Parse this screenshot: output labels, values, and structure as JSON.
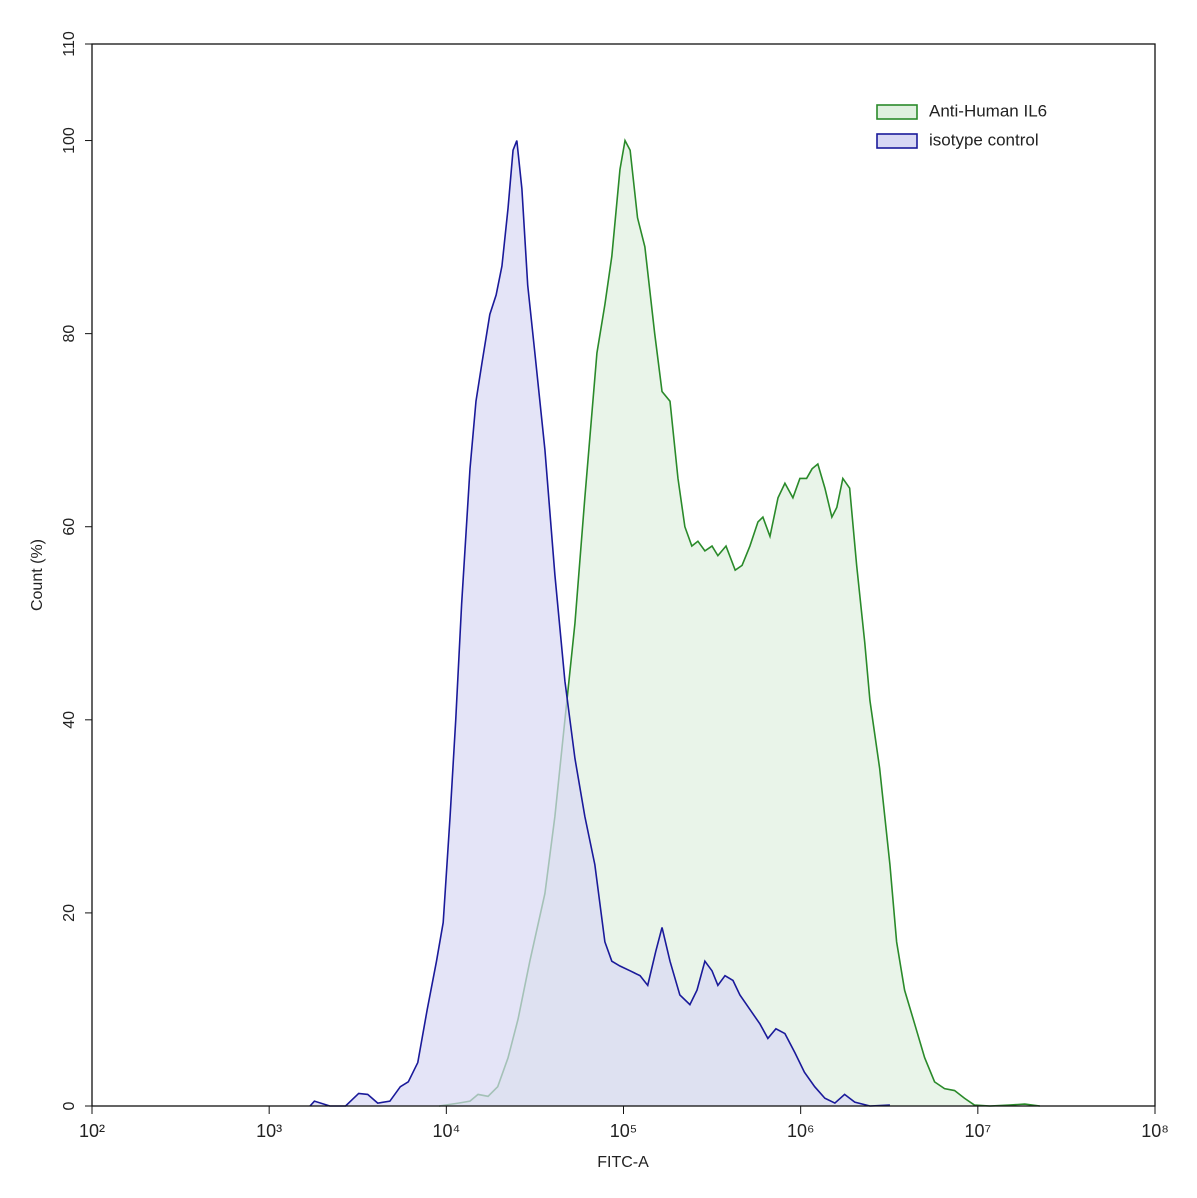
{
  "chart_data": {
    "type": "area",
    "xlabel": "FITC-A",
    "ylabel": "Count  (%)",
    "xscale": "log",
    "xlim": [
      100,
      100000000
    ],
    "xticks": [
      {
        "value": 100,
        "label": "10²"
      },
      {
        "value": 1000,
        "label": "10³"
      },
      {
        "value": 10000,
        "label": "10⁴"
      },
      {
        "value": 100000,
        "label": "10⁵"
      },
      {
        "value": 1000000,
        "label": "10⁶"
      },
      {
        "value": 10000000,
        "label": "10⁷"
      },
      {
        "value": 100000000,
        "label": "10⁸"
      }
    ],
    "ylim": [
      0,
      110
    ],
    "yticks": [
      0,
      20,
      40,
      60,
      80,
      100,
      110
    ],
    "legend": "upper right",
    "series": [
      {
        "name": "Anti-Human IL6",
        "color": "#2a8a2a",
        "fill": "#dff0df",
        "x": [
          9100,
          11700,
          13600,
          15100,
          17200,
          19500,
          22300,
          25400,
          29600,
          36000,
          41000,
          46700,
          53200,
          60500,
          70800,
          78500,
          85900,
          95500,
          102000,
          109000,
          120000,
          132000,
          150000,
          165000,
          183000,
          203000,
          222000,
          243000,
          263000,
          288000,
          316000,
          341000,
          379000,
          427000,
          467000,
          517000,
          574000,
          612000,
          671000,
          745000,
          815000,
          904000,
          990000,
          1080000,
          1160000,
          1250000,
          1370000,
          1500000,
          1600000,
          1730000,
          1890000,
          2070000,
          2300000,
          2460000,
          2790000,
          3190000,
          3480000,
          3860000,
          4400000,
          5010000,
          5700000,
          6490000,
          7390000,
          8410000,
          9570000,
          11700000,
          15100000,
          18400000,
          22400000
        ],
        "values": [
          0,
          0.3,
          0.5,
          1.2,
          1,
          2,
          5,
          9,
          15,
          22,
          30,
          40,
          50,
          63,
          78,
          83,
          88,
          97,
          100,
          99,
          92,
          89,
          80,
          74,
          73,
          65,
          60,
          58,
          58.5,
          57.5,
          58,
          57,
          58,
          55.5,
          56,
          58,
          60.5,
          61,
          59,
          63,
          64.5,
          63,
          65,
          65,
          66,
          66.5,
          64,
          61,
          62,
          65,
          64,
          56,
          48,
          42,
          35,
          25,
          17,
          12,
          8.5,
          5,
          2.5,
          1.8,
          1.6,
          0.8,
          0.1,
          0,
          0.1,
          0.2,
          0
        ]
      },
      {
        "name": "isotype control",
        "color": "#1a1a9a",
        "fill": "#d8d8f4",
        "x": [
          1700,
          1800,
          2200,
          2700,
          3200,
          3600,
          4100,
          4800,
          5500,
          6100,
          6900,
          7800,
          8800,
          9600,
          10500,
          11300,
          12200,
          13600,
          14700,
          15900,
          17600,
          19100,
          20600,
          22300,
          23800,
          25000,
          26700,
          28800,
          31600,
          36000,
          41000,
          46700,
          53200,
          60500,
          68900,
          78500,
          85900,
          95500,
          109000,
          124000,
          137000,
          152000,
          165000,
          183000,
          208000,
          237000,
          260000,
          288000,
          316000,
          341000,
          374000,
          415000,
          454000,
          517000,
          589000,
          653000,
          725000,
          815000,
          929000,
          1050000,
          1200000,
          1370000,
          1560000,
          1770000,
          2020000,
          2460000,
          3190000
        ],
        "values": [
          0,
          0.5,
          0,
          0,
          1.3,
          1.2,
          0.3,
          0.5,
          2,
          2.5,
          4.5,
          10,
          15,
          19,
          30,
          40,
          52,
          66,
          73,
          77,
          82,
          84,
          87,
          93,
          99,
          100,
          95,
          85,
          78,
          68,
          55,
          44,
          36,
          30,
          25,
          17,
          15,
          14.5,
          14,
          13.5,
          12.5,
          16,
          18.5,
          15,
          11.5,
          10.5,
          12,
          15,
          14,
          12.5,
          13.5,
          13,
          11.5,
          10,
          8.5,
          7,
          8,
          7.5,
          5.5,
          3.5,
          2,
          0.8,
          0.3,
          1.2,
          0.4,
          0,
          0.1
        ]
      }
    ]
  }
}
